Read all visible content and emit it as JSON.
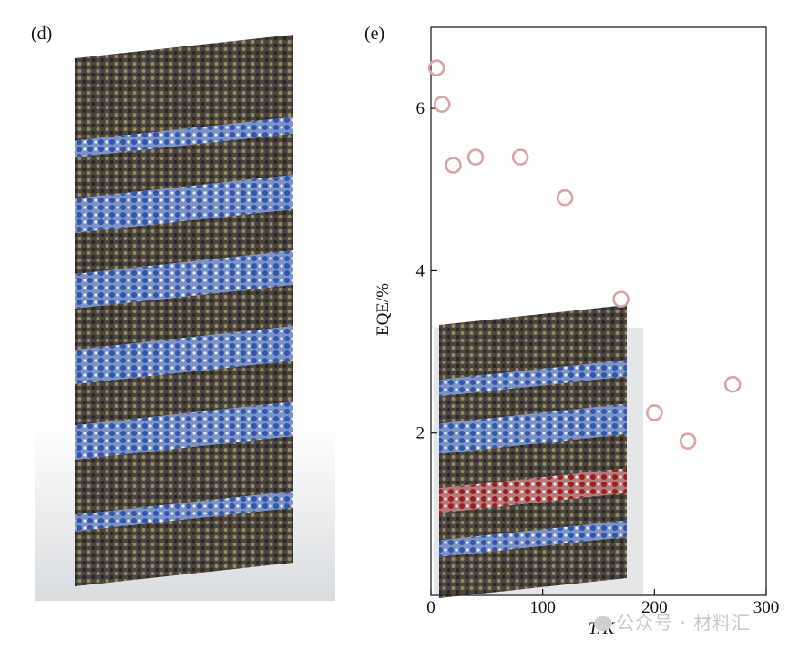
{
  "panels": {
    "left_label": "(d)",
    "right_label": "(e)"
  },
  "colors": {
    "marker": "#d9a3a8",
    "layer_dark": "#3a3530",
    "layer_gold": "#8a7a55",
    "layer_blue": "#4a6fb8",
    "layer_red": "#a83030"
  },
  "chart_data": {
    "type": "scatter",
    "xlabel": "T/K",
    "ylabel": "EQE/%",
    "xlim": [
      0,
      300
    ],
    "ylim": [
      0,
      7
    ],
    "xticks": [
      0,
      100,
      200,
      300
    ],
    "yticks": [
      2,
      4,
      6
    ],
    "xtick_labels": [
      "0",
      "100",
      "200",
      "300"
    ],
    "ytick_labels": [
      "2",
      "4",
      "6"
    ],
    "grid": false,
    "marker": "open-circle",
    "series": [
      {
        "x": [
          5,
          10,
          20,
          40,
          80,
          120,
          170,
          200,
          230,
          270
        ],
        "y": [
          6.5,
          6.05,
          5.3,
          5.4,
          5.4,
          4.9,
          3.65,
          2.25,
          1.9,
          2.6
        ]
      }
    ]
  },
  "watermark": {
    "text": "公众号 · 材料汇"
  }
}
